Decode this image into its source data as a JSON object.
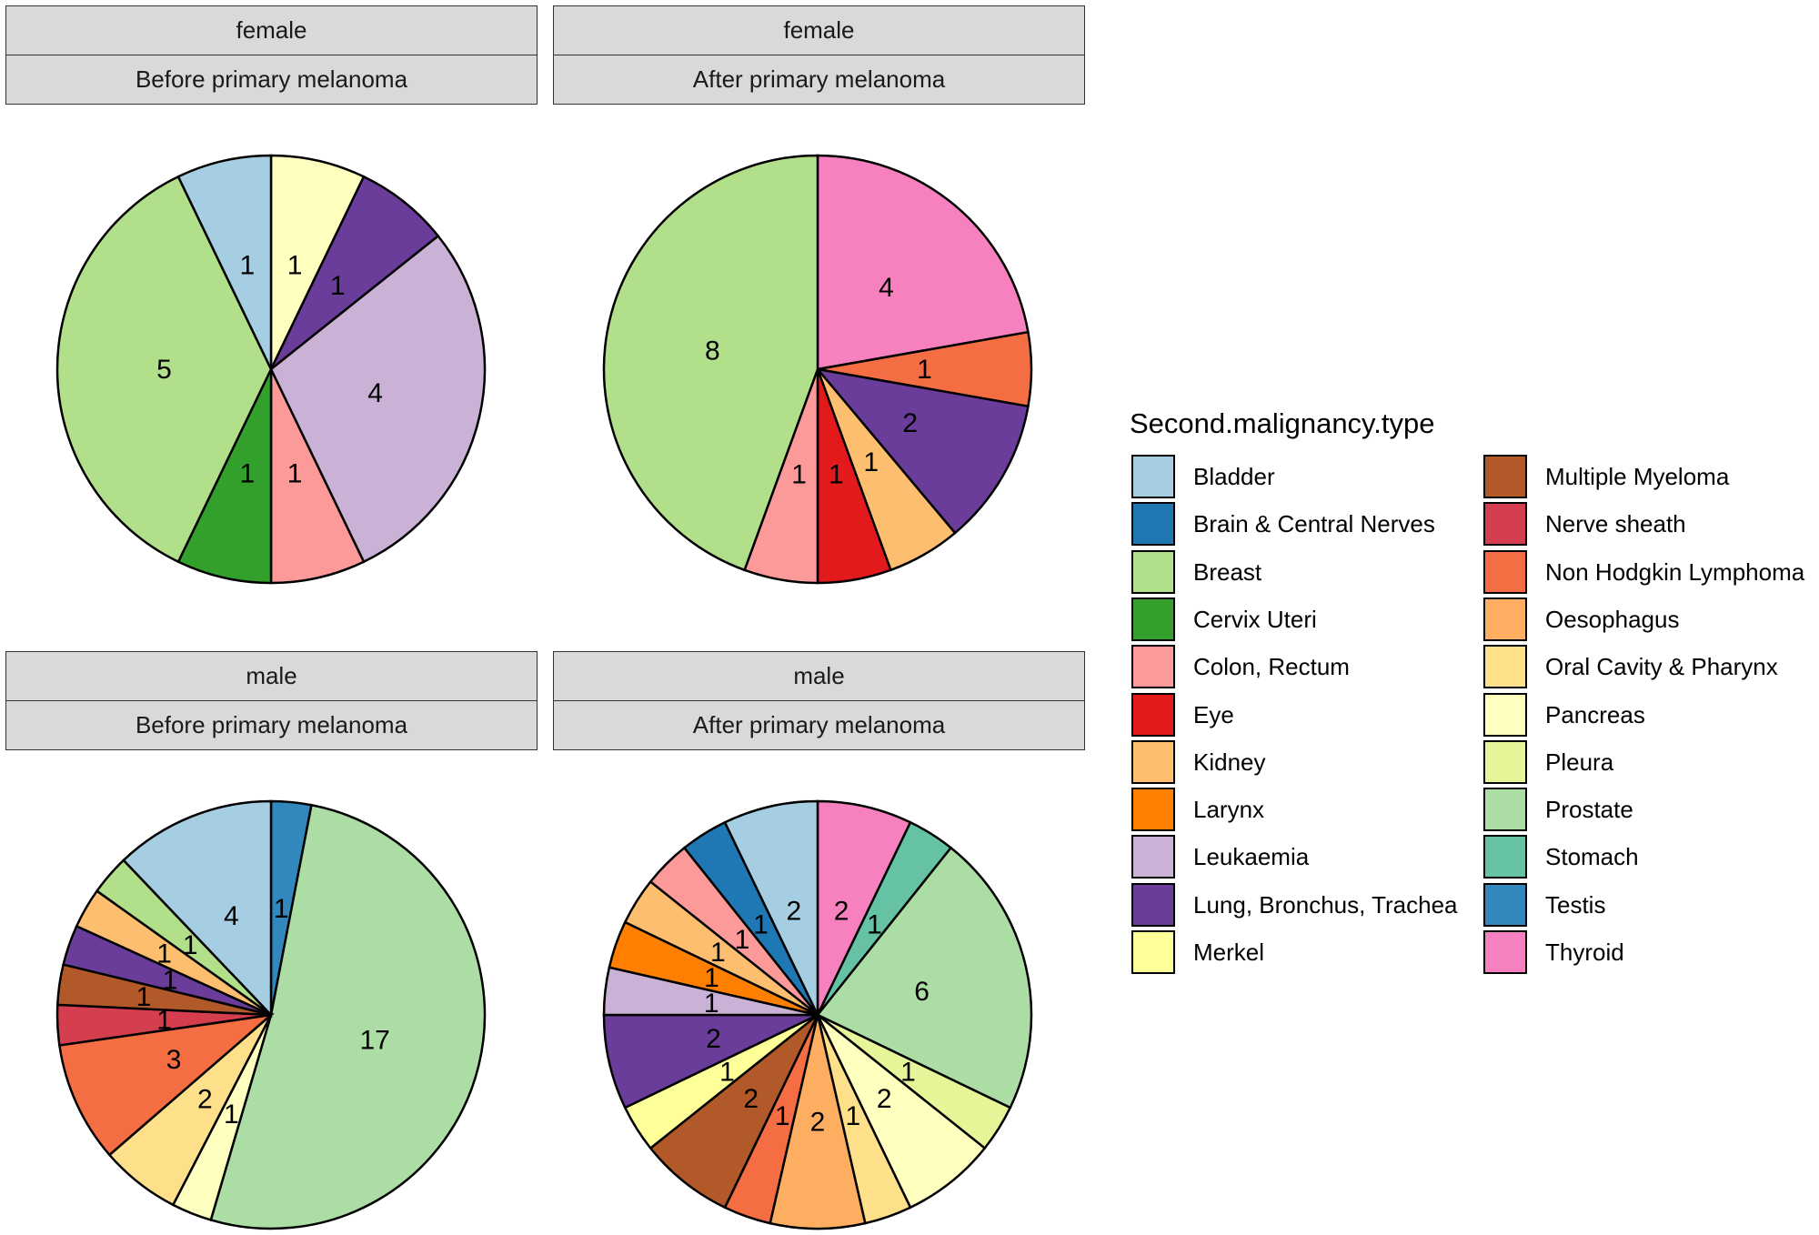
{
  "chart_data": [
    {
      "type": "pie",
      "facet": [
        "female",
        "Before primary melanoma"
      ],
      "slices": [
        {
          "category": "Bladder",
          "value": 1
        },
        {
          "category": "Breast",
          "value": 5
        },
        {
          "category": "Cervix Uteri",
          "value": 1
        },
        {
          "category": "Colon, Rectum",
          "value": 1
        },
        {
          "category": "Leukaemia",
          "value": 4
        },
        {
          "category": "Lung, Bronchus, Trachea",
          "value": 1
        },
        {
          "category": "Pancreas",
          "value": 1
        }
      ]
    },
    {
      "type": "pie",
      "facet": [
        "female",
        "After primary melanoma"
      ],
      "slices": [
        {
          "category": "Breast",
          "value": 8
        },
        {
          "category": "Colon, Rectum",
          "value": 1
        },
        {
          "category": "Eye",
          "value": 1
        },
        {
          "category": "Kidney",
          "value": 1
        },
        {
          "category": "Lung, Bronchus, Trachea",
          "value": 2
        },
        {
          "category": "Non Hodgkin Lymphoma",
          "value": 1
        },
        {
          "category": "Thyroid",
          "value": 4
        }
      ]
    },
    {
      "type": "pie",
      "facet": [
        "male",
        "Before primary melanoma"
      ],
      "slices": [
        {
          "category": "Bladder",
          "value": 4
        },
        {
          "category": "Breast",
          "value": 1
        },
        {
          "category": "Kidney",
          "value": 1
        },
        {
          "category": "Lung, Bronchus, Trachea",
          "value": 1
        },
        {
          "category": "Multiple Myeloma",
          "value": 1
        },
        {
          "category": "Nerve sheath",
          "value": 1
        },
        {
          "category": "Non Hodgkin Lymphoma",
          "value": 3
        },
        {
          "category": "Oral Cavity & Pharynx",
          "value": 2
        },
        {
          "category": "Pancreas",
          "value": 1
        },
        {
          "category": "Prostate",
          "value": 17
        },
        {
          "category": "Testis",
          "value": 1
        }
      ]
    },
    {
      "type": "pie",
      "facet": [
        "male",
        "After primary melanoma"
      ],
      "slices": [
        {
          "category": "Bladder",
          "value": 2
        },
        {
          "category": "Brain & Central Nerves",
          "value": 1
        },
        {
          "category": "Colon, Rectum",
          "value": 1
        },
        {
          "category": "Kidney",
          "value": 1
        },
        {
          "category": "Larynx",
          "value": 1
        },
        {
          "category": "Leukaemia",
          "value": 1
        },
        {
          "category": "Lung, Bronchus, Trachea",
          "value": 2
        },
        {
          "category": "Merkel",
          "value": 1
        },
        {
          "category": "Multiple Myeloma",
          "value": 2
        },
        {
          "category": "Non Hodgkin Lymphoma",
          "value": 1
        },
        {
          "category": "Oesophagus",
          "value": 2
        },
        {
          "category": "Oral Cavity & Pharynx",
          "value": 1
        },
        {
          "category": "Pancreas",
          "value": 2
        },
        {
          "category": "Pleura",
          "value": 1
        },
        {
          "category": "Prostate",
          "value": 6
        },
        {
          "category": "Stomach",
          "value": 1
        },
        {
          "category": "Thyroid",
          "value": 2
        }
      ]
    }
  ],
  "legend": {
    "title": "Second.malignancy.type",
    "items": [
      {
        "label": "Bladder",
        "color": "#a6cee3"
      },
      {
        "label": "Brain & Central Nerves",
        "color": "#1f78b4"
      },
      {
        "label": "Breast",
        "color": "#b2df8a"
      },
      {
        "label": "Cervix Uteri",
        "color": "#33a02c"
      },
      {
        "label": "Colon, Rectum",
        "color": "#fb9a99"
      },
      {
        "label": "Eye",
        "color": "#e31a1c"
      },
      {
        "label": "Kidney",
        "color": "#fdbf6f"
      },
      {
        "label": "Larynx",
        "color": "#ff7f00"
      },
      {
        "label": "Leukaemia",
        "color": "#cab2d6"
      },
      {
        "label": "Lung, Bronchus, Trachea",
        "color": "#6a3d9a"
      },
      {
        "label": "Merkel",
        "color": "#ffff99"
      },
      {
        "label": "Multiple Myeloma",
        "color": "#b15928"
      },
      {
        "label": "Nerve sheath",
        "color": "#d53e4f"
      },
      {
        "label": "Non Hodgkin Lymphoma",
        "color": "#f46d43"
      },
      {
        "label": "Oesophagus",
        "color": "#fdae61"
      },
      {
        "label": "Oral Cavity & Pharynx",
        "color": "#fee08b"
      },
      {
        "label": "Pancreas",
        "color": "#ffffbf"
      },
      {
        "label": "Pleura",
        "color": "#e6f598"
      },
      {
        "label": "Prostate",
        "color": "#abdda4"
      },
      {
        "label": "Stomach",
        "color": "#66c2a5"
      },
      {
        "label": "Testis",
        "color": "#3288bd"
      },
      {
        "label": "Thyroid",
        "color": "#f781bf"
      }
    ]
  }
}
